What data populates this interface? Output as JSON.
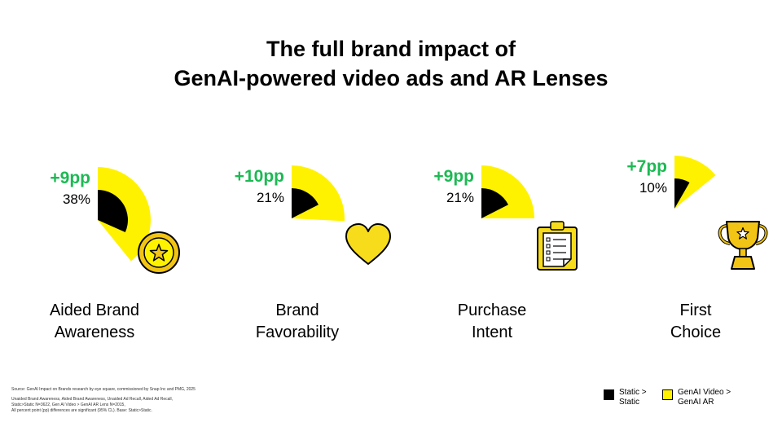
{
  "title": {
    "line1": "The full brand impact of",
    "line2": "GenAI-powered video ads and AR Lenses"
  },
  "colors": {
    "static": "#000000",
    "genai": "#FFF200",
    "uplift": "#1DB954",
    "icon_gold": "#F2C415"
  },
  "chart_data": {
    "type": "radial-bar",
    "categories": [
      "Aided Brand Awareness",
      "Brand Favorability",
      "Purchase Intent",
      "First Choice"
    ],
    "series": [
      {
        "name": "Static > Static",
        "values": [
          38,
          21,
          21,
          10
        ],
        "unit": "%"
      },
      {
        "name": "GenAI Video > GenAI AR",
        "values": [
          47,
          31,
          30,
          17
        ],
        "unit": "%"
      }
    ],
    "uplift_pp": [
      9,
      10,
      9,
      7
    ],
    "value_labels": [
      "38%",
      "21%",
      "21%",
      "10%"
    ],
    "uplift_labels": [
      "+9pp",
      "+10pp",
      "+9pp",
      "+7pp"
    ],
    "icons": [
      "star-medal-icon",
      "heart-icon",
      "clipboard-checklist-icon",
      "trophy-icon"
    ],
    "legend": [
      {
        "line1": "Static >",
        "line2": "Static",
        "color": "#000000"
      },
      {
        "line1": "GenAI Video >",
        "line2": "GenAI AR",
        "color": "#FFF200"
      }
    ]
  },
  "metrics": [
    {
      "line1": "Aided Brand",
      "line2": "Awareness"
    },
    {
      "line1": "Brand",
      "line2": "Favorability"
    },
    {
      "line1": "Purchase",
      "line2": "Intent"
    },
    {
      "line1": "First",
      "line2": "Choice"
    }
  ],
  "footnotes": {
    "source": "Source: GenAI Impact on Brands research by eye square, commissioned by Snap Inc and PMG, 2025",
    "line2": "Unaided Brand Awareness, Aided Brand Awareness, Unaided Ad Recall, Aided Ad Recall,",
    "line3": "Static>Static N=3622, Gen AI Video > GenAI AR Lens N=2015,",
    "line4": "All percent point (pp) differences are significant (95% CL). Base: Static>Static."
  }
}
